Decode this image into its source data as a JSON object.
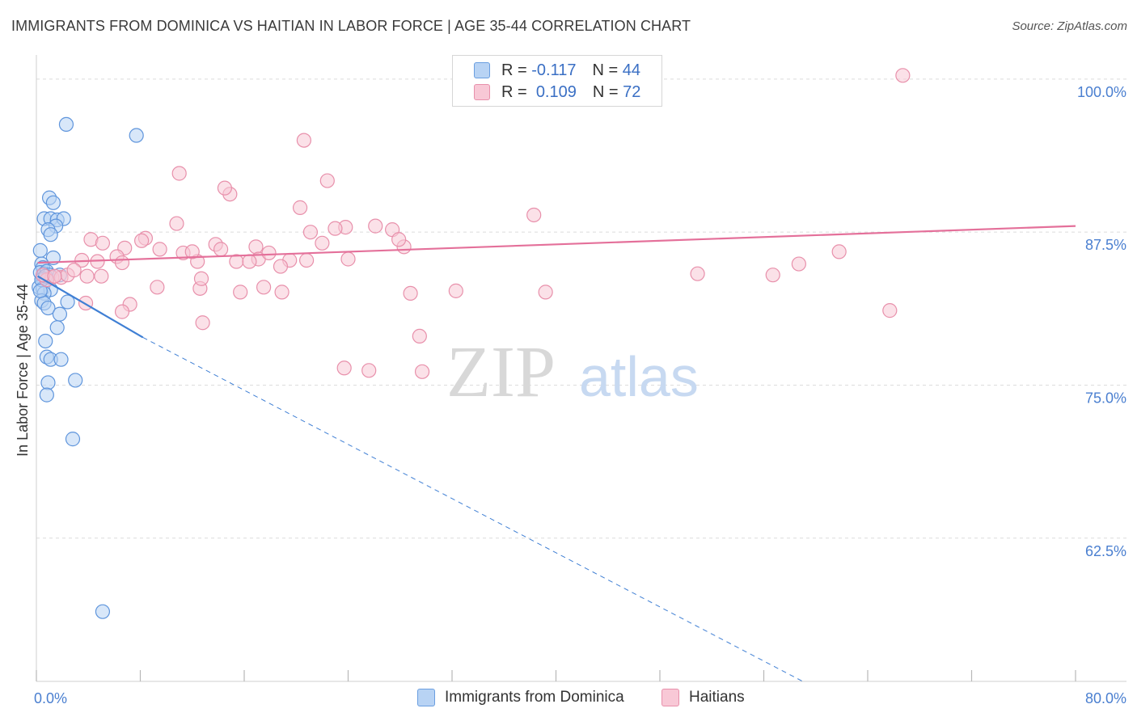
{
  "title": "IMMIGRANTS FROM DOMINICA VS HAITIAN IN LABOR FORCE | AGE 35-44 CORRELATION CHART",
  "source": "Source: ZipAtlas.com",
  "watermark": {
    "zip": "ZIP",
    "atlas": "atlas"
  },
  "legend": {
    "r_label": "R =",
    "n_label": "N =",
    "rows": [
      {
        "r": "-0.117",
        "n": "44",
        "fill": "#b8d3f4",
        "stroke": "#6a9ee0"
      },
      {
        "r": "0.109",
        "n": "72",
        "fill": "#f8c8d6",
        "stroke": "#e890ab"
      }
    ]
  },
  "bottom_legend": [
    {
      "label": "Immigrants from Dominica",
      "fill": "#b8d3f4",
      "stroke": "#6a9ee0"
    },
    {
      "label": "Haitians",
      "fill": "#f8c8d6",
      "stroke": "#e890ab"
    }
  ],
  "chart_data": {
    "type": "scatter",
    "xlabel": "",
    "ylabel": "In Labor Force | Age 35-44",
    "xlim": [
      0,
      80
    ],
    "ylim": [
      50.8,
      102.5
    ],
    "x_tick_labels": [
      {
        "value": 0,
        "label": "0.0%"
      },
      {
        "value": 80,
        "label": "80.0%"
      }
    ],
    "y_tick_labels": [
      {
        "value": 100,
        "label": "100.0%"
      },
      {
        "value": 87.5,
        "label": "87.5%"
      },
      {
        "value": 75,
        "label": "75.0%"
      },
      {
        "value": 62.5,
        "label": "62.5%"
      }
    ],
    "grid": "horizontal-dashed",
    "colors": {
      "dominica": "#3f7fd4",
      "haitians": "#e4709a"
    },
    "series": [
      {
        "name": "Immigrants from Dominica",
        "points": [
          [
            2.3,
            96.3
          ],
          [
            7.7,
            95.4
          ],
          [
            1.0,
            90.3
          ],
          [
            1.3,
            89.9
          ],
          [
            0.6,
            88.6
          ],
          [
            1.1,
            88.6
          ],
          [
            1.6,
            88.5
          ],
          [
            2.1,
            88.6
          ],
          [
            1.5,
            88.0
          ],
          [
            0.9,
            87.7
          ],
          [
            1.1,
            87.3
          ],
          [
            0.3,
            86.0
          ],
          [
            1.3,
            85.4
          ],
          [
            0.4,
            84.9
          ],
          [
            0.5,
            84.6
          ],
          [
            0.3,
            84.2
          ],
          [
            0.6,
            84.1
          ],
          [
            0.8,
            84.3
          ],
          [
            1.0,
            84.0
          ],
          [
            1.8,
            84.0
          ],
          [
            0.5,
            83.7
          ],
          [
            0.8,
            83.6
          ],
          [
            0.2,
            83.0
          ],
          [
            0.5,
            82.9
          ],
          [
            1.1,
            82.8
          ],
          [
            0.6,
            82.5
          ],
          [
            0.4,
            81.9
          ],
          [
            0.6,
            81.7
          ],
          [
            2.4,
            81.8
          ],
          [
            0.9,
            81.3
          ],
          [
            1.8,
            80.8
          ],
          [
            1.6,
            79.7
          ],
          [
            0.7,
            78.6
          ],
          [
            0.8,
            77.3
          ],
          [
            1.1,
            77.1
          ],
          [
            1.9,
            77.1
          ],
          [
            0.9,
            75.2
          ],
          [
            3.0,
            75.4
          ],
          [
            0.8,
            74.2
          ],
          [
            2.8,
            70.6
          ],
          [
            5.1,
            56.5
          ],
          [
            0.4,
            83.6
          ],
          [
            0.7,
            83.9
          ],
          [
            0.3,
            82.7
          ]
        ]
      },
      {
        "name": "Haitians",
        "points": [
          [
            66.7,
            100.3
          ],
          [
            20.6,
            95.0
          ],
          [
            22.4,
            91.7
          ],
          [
            11.0,
            92.3
          ],
          [
            14.9,
            90.6
          ],
          [
            20.3,
            89.5
          ],
          [
            26.1,
            88.0
          ],
          [
            10.8,
            88.2
          ],
          [
            14.5,
            91.1
          ],
          [
            23.8,
            87.9
          ],
          [
            27.4,
            87.7
          ],
          [
            16.9,
            86.3
          ],
          [
            13.8,
            86.5
          ],
          [
            4.2,
            86.9
          ],
          [
            8.4,
            87.0
          ],
          [
            5.1,
            86.6
          ],
          [
            9.5,
            86.1
          ],
          [
            11.3,
            85.8
          ],
          [
            6.8,
            86.2
          ],
          [
            8.1,
            86.8
          ],
          [
            3.5,
            85.2
          ],
          [
            4.7,
            85.1
          ],
          [
            6.2,
            85.5
          ],
          [
            6.6,
            85.0
          ],
          [
            12.4,
            85.1
          ],
          [
            15.4,
            85.1
          ],
          [
            17.1,
            85.3
          ],
          [
            17.9,
            85.8
          ],
          [
            19.5,
            85.2
          ],
          [
            20.8,
            85.2
          ],
          [
            14.2,
            86.1
          ],
          [
            12.0,
            85.9
          ],
          [
            22.0,
            86.6
          ],
          [
            24.0,
            85.3
          ],
          [
            38.3,
            88.9
          ],
          [
            61.8,
            85.9
          ],
          [
            50.9,
            84.1
          ],
          [
            56.7,
            84.0
          ],
          [
            58.7,
            84.9
          ],
          [
            3.9,
            83.9
          ],
          [
            5.0,
            83.9
          ],
          [
            1.2,
            83.8
          ],
          [
            1.9,
            83.8
          ],
          [
            2.4,
            84.0
          ],
          [
            2.9,
            84.4
          ],
          [
            9.3,
            83.0
          ],
          [
            12.6,
            82.9
          ],
          [
            15.7,
            82.6
          ],
          [
            18.9,
            82.6
          ],
          [
            17.5,
            83.0
          ],
          [
            28.8,
            82.5
          ],
          [
            32.3,
            82.7
          ],
          [
            3.8,
            81.7
          ],
          [
            7.2,
            81.6
          ],
          [
            6.6,
            81.0
          ],
          [
            65.7,
            81.1
          ],
          [
            12.8,
            80.1
          ],
          [
            29.5,
            79.0
          ],
          [
            39.2,
            82.6
          ],
          [
            23.7,
            76.4
          ],
          [
            25.6,
            76.2
          ],
          [
            29.7,
            76.1
          ],
          [
            28.3,
            86.3
          ],
          [
            27.9,
            86.9
          ],
          [
            23.0,
            87.8
          ],
          [
            21.1,
            87.5
          ],
          [
            16.4,
            85.1
          ],
          [
            18.8,
            84.7
          ],
          [
            12.7,
            83.7
          ],
          [
            0.8,
            83.6
          ],
          [
            0.5,
            84.0
          ],
          [
            1.4,
            83.9
          ]
        ]
      }
    ],
    "trend_lines": [
      {
        "series": "Immigrants from Dominica",
        "solid": [
          [
            0.1,
            83.9
          ],
          [
            8.2,
            78.9
          ]
        ],
        "dashed": [
          [
            8.2,
            78.9
          ],
          [
            59.0,
            50.8
          ]
        ]
      },
      {
        "series": "Haitians",
        "solid": [
          [
            0.1,
            85.0
          ],
          [
            80.0,
            88.0
          ]
        ]
      }
    ]
  }
}
